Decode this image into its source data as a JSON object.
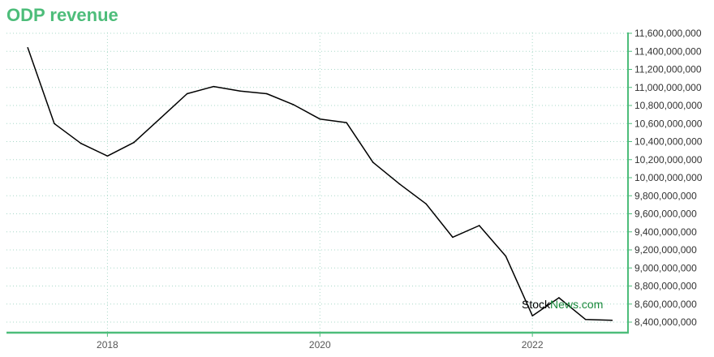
{
  "chart_data": {
    "type": "line",
    "title": "ODP revenue",
    "colors": {
      "line": "#000000",
      "axis": "#4dbd7a",
      "grid": "#a8d8c8",
      "title": "#4dbd7a"
    },
    "xlim": [
      2017.05,
      2022.9
    ],
    "ylim": [
      8350000000,
      11620000000
    ],
    "x_ticks": [
      {
        "value": 2018,
        "label": "2018"
      },
      {
        "value": 2020,
        "label": "2020"
      },
      {
        "value": 2022,
        "label": "2022"
      }
    ],
    "y_ticks": [
      {
        "value": 8400000000,
        "label": "8,400,000,000"
      },
      {
        "value": 8600000000,
        "label": "8,600,000,000"
      },
      {
        "value": 8800000000,
        "label": "8,800,000,000"
      },
      {
        "value": 9000000000,
        "label": "9,000,000,000"
      },
      {
        "value": 9200000000,
        "label": "9,200,000,000"
      },
      {
        "value": 9400000000,
        "label": "9,400,000,000"
      },
      {
        "value": 9600000000,
        "label": "9,600,000,000"
      },
      {
        "value": 9800000000,
        "label": "9,800,000,000"
      },
      {
        "value": 10000000000,
        "label": "10,000,000,000"
      },
      {
        "value": 10200000000,
        "label": "10,200,000,000"
      },
      {
        "value": 10400000000,
        "label": "10,400,000,000"
      },
      {
        "value": 10600000000,
        "label": "10,600,000,000"
      },
      {
        "value": 10800000000,
        "label": "10,800,000,000"
      },
      {
        "value": 11000000000,
        "label": "11,000,000,000"
      },
      {
        "value": 11200000000,
        "label": "11,200,000,000"
      },
      {
        "value": 11400000000,
        "label": "11,400,000,000"
      },
      {
        "value": 11600000000,
        "label": "11,600,000,000"
      }
    ],
    "grid": true,
    "series": [
      {
        "x": [
          2017.25,
          2017.5,
          2017.75,
          2018.0,
          2018.25,
          2018.5,
          2018.75,
          2019.0,
          2019.25,
          2019.5,
          2019.75,
          2020.0,
          2020.25,
          2020.5,
          2020.75,
          2021.0,
          2021.25,
          2021.5,
          2021.75,
          2022.0,
          2022.25,
          2022.5,
          2022.75
        ],
        "y": [
          11440000000,
          10600000000,
          10380000000,
          10240000000,
          10390000000,
          10660000000,
          10930000000,
          11010000000,
          10960000000,
          10930000000,
          10810000000,
          10650000000,
          10610000000,
          10170000000,
          9930000000,
          9710000000,
          9340000000,
          9470000000,
          9130000000,
          8470000000,
          8670000000,
          8430000000,
          8420000000
        ]
      }
    ]
  },
  "watermark": {
    "part1": "Stock",
    "part2": "News.com",
    "color1": "#000000",
    "color2": "#1a8a3c"
  }
}
